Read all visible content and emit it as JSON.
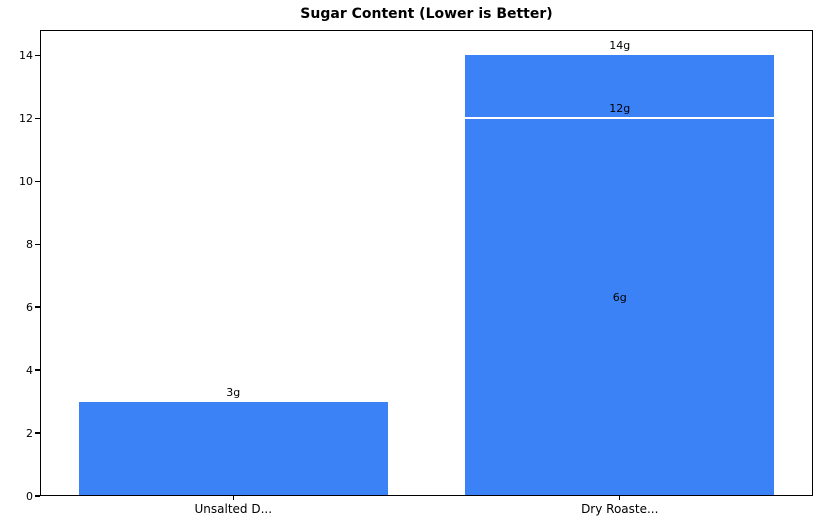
{
  "chart_data": {
    "type": "bar",
    "title": "Sugar Content (Lower is Better)",
    "categories": [
      "Unsalted D...",
      "Dry Roaste..."
    ],
    "values": [
      3,
      14
    ],
    "bars": [
      {
        "category": "Unsalted D...",
        "value": 3,
        "annotations": [
          {
            "value": 3,
            "text": "3g"
          }
        ],
        "dividers": []
      },
      {
        "category": "Dry Roaste...",
        "value": 14,
        "annotations": [
          {
            "value": 14,
            "text": "14g"
          },
          {
            "value": 12,
            "text": "12g"
          },
          {
            "value": 6,
            "text": "6g"
          }
        ],
        "dividers": [
          12
        ]
      }
    ],
    "xlabel": "",
    "ylabel": "",
    "yticks": [
      0,
      2,
      4,
      6,
      8,
      10,
      12,
      14
    ],
    "ylim": [
      0,
      14.8
    ],
    "bar_width_fraction": 0.8,
    "bar_color": "#3b82f6",
    "divider_color": "#ffffff",
    "text_color": "#000000",
    "background_color": "#ffffff",
    "grid": false,
    "legend": false
  }
}
